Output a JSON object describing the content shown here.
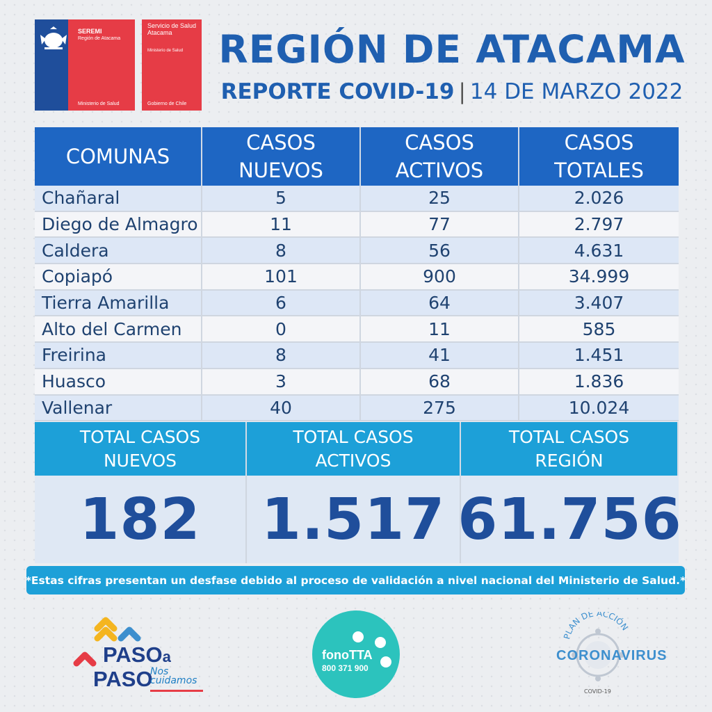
{
  "logos": {
    "seremi": {
      "title": "SEREMI",
      "subtitle": "Región de Atacama",
      "footer": "Ministerio de Salud"
    },
    "servicio": {
      "title": "Servicio de Salud Atacama",
      "subtitle": "Ministerio de Salud",
      "footer": "Gobierno de Chile"
    }
  },
  "header": {
    "title": "REGIÓN DE ATACAMA",
    "report": "REPORTE COVID-19",
    "separator": "|",
    "date": "14 DE MARZO 2022"
  },
  "table": {
    "columns": [
      "COMUNAS",
      "CASOS NUEVOS",
      "CASOS ACTIVOS",
      "CASOS TOTALES"
    ],
    "rows": [
      [
        "Chañaral",
        "5",
        "25",
        "2.026"
      ],
      [
        "Diego de Almagro",
        "11",
        "77",
        "2.797"
      ],
      [
        "Caldera",
        "8",
        "56",
        "4.631"
      ],
      [
        "Copiapó",
        "101",
        "900",
        "34.999"
      ],
      [
        "Tierra Amarilla",
        "6",
        "64",
        "3.407"
      ],
      [
        "Alto del Carmen",
        "0",
        "11",
        "585"
      ],
      [
        "Freirina",
        "8",
        "41",
        "1.451"
      ],
      [
        "Huasco",
        "3",
        "68",
        "1.836"
      ],
      [
        "Vallenar",
        "40",
        "275",
        "10.024"
      ]
    ]
  },
  "totals": {
    "headers": [
      "TOTAL CASOS NUEVOS",
      "TOTAL CASOS ACTIVOS",
      "TOTAL CASOS REGIÓN"
    ],
    "values": [
      "182",
      "1.517",
      "61.756"
    ]
  },
  "note": "*Estas cifras presentan un desfase debido al proceso de validación a nivel nacional del Ministerio de Salud.*",
  "footer": {
    "paso": {
      "line1": "PASO",
      "a": "a",
      "line2": "PASO",
      "nos": "Nos",
      "cuidamos": "cuidamos"
    },
    "fono": {
      "name": "fonoTTA",
      "phone": "800 371 900"
    },
    "corona": {
      "arc_text": "PLAN DE ACCIÓN",
      "main": "CORONAVIRUS",
      "sub": "COVID-19"
    }
  },
  "colors": {
    "primary_blue": "#1e66c3",
    "light_blue": "#1da0d8",
    "dark_blue": "#1f4e9b",
    "red": "#e63c46",
    "teal": "#2cc3bd"
  }
}
